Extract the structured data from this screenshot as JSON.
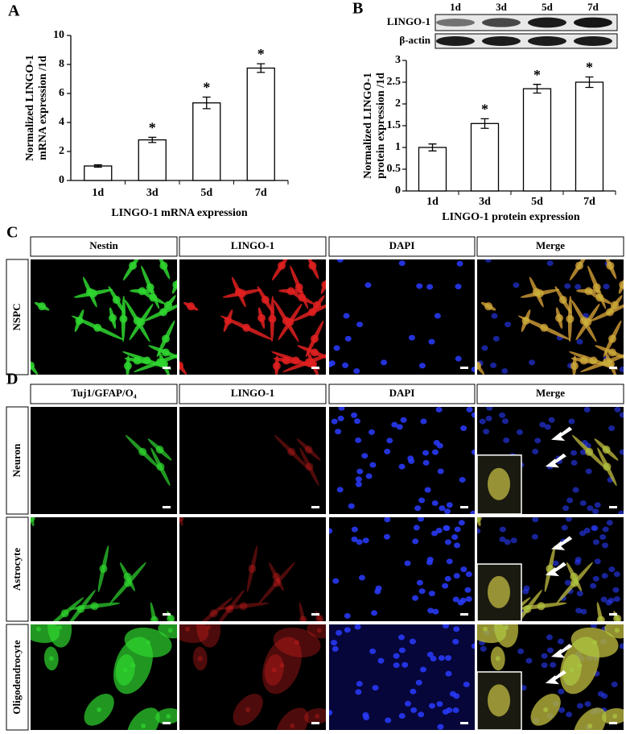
{
  "chart_data": [
    {
      "type": "bar",
      "panel": "A",
      "categories": [
        "1d",
        "3d",
        "5d",
        "7d"
      ],
      "values": [
        1,
        2.8,
        5.35,
        7.75
      ],
      "errors": [
        0.08,
        0.18,
        0.4,
        0.3
      ],
      "significance": [
        null,
        "*",
        "*",
        "*"
      ],
      "y_label": [
        "Normalized LINGO-1",
        "mRNA expression /1d"
      ],
      "x_label": "LINGO-1 mRNA expression",
      "ylim": [
        0,
        10
      ],
      "yticks": [
        0,
        2,
        4,
        6,
        8,
        10
      ],
      "color": "#ffffff"
    },
    {
      "type": "bar",
      "panel": "B",
      "categories": [
        "1d",
        "3d",
        "5d",
        "7d"
      ],
      "values": [
        1,
        1.55,
        2.35,
        2.5
      ],
      "errors": [
        0.08,
        0.11,
        0.1,
        0.12
      ],
      "significance": [
        null,
        "*",
        "*",
        "*"
      ],
      "y_label": [
        "Normalized LINGO-1",
        "protein expression /1d"
      ],
      "x_label": "LINGO-1 protein expression",
      "ylim": [
        0,
        3
      ],
      "yticks": [
        0,
        0.5,
        1,
        1.5,
        2,
        2.5,
        3
      ],
      "color": "#ffffff"
    }
  ],
  "western_blot": {
    "lanes": [
      "1d",
      "3d",
      "5d",
      "7d"
    ],
    "rows": [
      "LINGO-1",
      "β-actin"
    ]
  },
  "panel_c": {
    "label": "C",
    "columns": [
      "Nestin",
      "LINGO-1",
      "DAPI",
      "Merge"
    ],
    "rows": [
      "NSPC"
    ]
  },
  "panel_d": {
    "label": "D",
    "columns": [
      "Tuj1/GFAP/O₄",
      "LINGO-1",
      "DAPI",
      "Merge"
    ],
    "rows": [
      "Neuron",
      "Astrocyte",
      "Oligodendrocyte"
    ]
  }
}
